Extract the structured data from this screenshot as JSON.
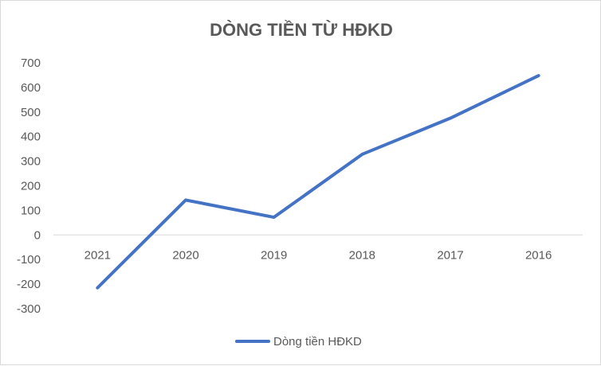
{
  "chart_data": {
    "type": "line",
    "title": "DÒNG TIỀN TỪ HĐKD",
    "categories": [
      "2021",
      "2020",
      "2019",
      "2018",
      "2017",
      "2016"
    ],
    "series": [
      {
        "name": "Dòng tiền HĐKD",
        "values": [
          -215,
          142,
          72,
          328,
          475,
          648
        ],
        "color": "#4472c4"
      }
    ],
    "yticks": [
      "700",
      "600",
      "500",
      "400",
      "300",
      "200",
      "100",
      "0",
      "-100",
      "-200",
      "-300"
    ],
    "ylim": [
      -300,
      700
    ],
    "grid": false,
    "legend_position": "bottom"
  }
}
